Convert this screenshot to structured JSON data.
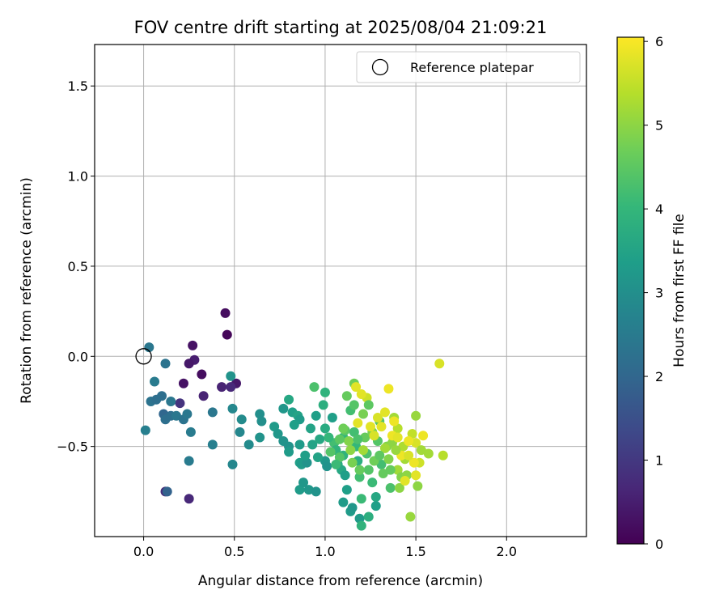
{
  "chart_data": {
    "type": "scatter",
    "title": "FOV centre drift starting at 2025/08/04 21:09:21",
    "xlabel": "Angular distance from reference (arcmin)",
    "ylabel": "Rotation from reference (arcmin)",
    "xlim": [
      -0.27,
      2.44
    ],
    "ylim": [
      -1.0,
      1.73
    ],
    "xticks": [
      0.0,
      0.5,
      1.0,
      1.5,
      2.0
    ],
    "xtick_labels": [
      "0.0",
      "0.5",
      "1.0",
      "1.5",
      "2.0"
    ],
    "yticks": [
      -0.5,
      0.0,
      0.5,
      1.0,
      1.5
    ],
    "ytick_labels": [
      "−0.5",
      "0.0",
      "0.5",
      "1.0",
      "1.5"
    ],
    "grid": true,
    "legend": {
      "position": "upper-right",
      "entries": [
        {
          "label": "Reference platepar",
          "marker": "open-circle",
          "x": 0.0,
          "y": 0.0
        }
      ]
    },
    "colorbar": {
      "label": "Hours from first FF file",
      "colormap": "viridis",
      "range": [
        0,
        6.05
      ],
      "ticks": [
        0,
        1,
        2,
        3,
        4,
        5,
        6
      ],
      "tick_labels": [
        "0",
        "1",
        "2",
        "3",
        "4",
        "5",
        "6"
      ]
    },
    "series": [
      {
        "marker": "filled-circle",
        "columns": [
          "x",
          "y",
          "hours"
        ],
        "points": [
          [
            0.45,
            0.24,
            0.2
          ],
          [
            0.46,
            0.12,
            0.1
          ],
          [
            0.27,
            0.06,
            0.3
          ],
          [
            0.28,
            -0.02,
            0.5
          ],
          [
            0.25,
            -0.04,
            0.4
          ],
          [
            0.32,
            -0.1,
            0.2
          ],
          [
            0.22,
            -0.15,
            0.3
          ],
          [
            0.43,
            -0.17,
            0.6
          ],
          [
            0.51,
            -0.15,
            0.4
          ],
          [
            0.48,
            -0.17,
            0.7
          ],
          [
            0.33,
            -0.22,
            0.6
          ],
          [
            0.2,
            -0.26,
            0.9
          ],
          [
            0.12,
            -0.75,
            0.8
          ],
          [
            0.25,
            -0.79,
            0.7
          ],
          [
            0.03,
            0.05,
            2.4
          ],
          [
            0.12,
            -0.04,
            2.3
          ],
          [
            0.06,
            -0.14,
            2.5
          ],
          [
            0.48,
            -0.11,
            3.1
          ],
          [
            0.1,
            -0.22,
            2.2
          ],
          [
            0.04,
            -0.25,
            2.3
          ],
          [
            0.07,
            -0.24,
            2.2
          ],
          [
            0.15,
            -0.25,
            2.4
          ],
          [
            0.11,
            -0.32,
            2.0
          ],
          [
            0.12,
            -0.35,
            2.2
          ],
          [
            0.15,
            -0.33,
            2.2
          ],
          [
            0.18,
            -0.33,
            2.4
          ],
          [
            0.22,
            -0.35,
            2.3
          ],
          [
            0.24,
            -0.32,
            2.4
          ],
          [
            0.26,
            -0.42,
            2.5
          ],
          [
            0.01,
            -0.41,
            2.6
          ],
          [
            0.25,
            -0.58,
            2.5
          ],
          [
            0.13,
            -0.75,
            1.9
          ],
          [
            0.38,
            -0.31,
            2.4
          ],
          [
            0.38,
            -0.49,
            2.6
          ],
          [
            0.49,
            -0.29,
            2.8
          ],
          [
            0.54,
            -0.35,
            2.9
          ],
          [
            0.53,
            -0.42,
            2.8
          ],
          [
            0.49,
            -0.6,
            2.8
          ],
          [
            0.58,
            -0.49,
            2.9
          ],
          [
            0.64,
            -0.32,
            3.0
          ],
          [
            0.65,
            -0.36,
            3.0
          ],
          [
            0.64,
            -0.45,
            3.1
          ],
          [
            0.72,
            -0.39,
            3.3
          ],
          [
            0.74,
            -0.43,
            3.2
          ],
          [
            0.77,
            -0.29,
            3.2
          ],
          [
            0.77,
            -0.47,
            3.1
          ],
          [
            0.8,
            -0.24,
            3.6
          ],
          [
            0.8,
            -0.5,
            3.1
          ],
          [
            0.8,
            -0.53,
            3.3
          ],
          [
            0.82,
            -0.31,
            3.4
          ],
          [
            0.85,
            -0.33,
            3.5
          ],
          [
            0.86,
            -0.35,
            3.3
          ],
          [
            0.86,
            -0.49,
            3.3
          ],
          [
            0.86,
            -0.59,
            3.4
          ],
          [
            0.87,
            -0.6,
            3.3
          ],
          [
            0.86,
            -0.74,
            3.3
          ],
          [
            0.88,
            -0.7,
            3.2
          ],
          [
            0.9,
            -0.59,
            3.1
          ],
          [
            0.91,
            -0.74,
            3.2
          ],
          [
            0.92,
            -0.4,
            3.5
          ],
          [
            0.93,
            -0.49,
            3.5
          ],
          [
            0.95,
            -0.33,
            3.4
          ],
          [
            0.97,
            -0.46,
            3.6
          ],
          [
            0.99,
            -0.27,
            3.8
          ],
          [
            1.0,
            -0.2,
            3.9
          ],
          [
            1.0,
            -0.4,
            3.7
          ],
          [
            1.0,
            -0.58,
            3.2
          ],
          [
            1.01,
            -0.61,
            3.1
          ],
          [
            0.95,
            -0.75,
            3.1
          ],
          [
            0.94,
            -0.17,
            4.3
          ],
          [
            1.04,
            -0.34,
            3.4
          ],
          [
            1.05,
            -0.48,
            4.2
          ],
          [
            1.06,
            -0.52,
            3.9
          ],
          [
            1.07,
            -0.6,
            3.7
          ],
          [
            1.09,
            -0.63,
            3.6
          ],
          [
            1.1,
            -0.45,
            4.0
          ],
          [
            1.1,
            -0.55,
            3.9
          ],
          [
            1.11,
            -0.66,
            3.4
          ],
          [
            1.12,
            -0.74,
            3.4
          ],
          [
            1.1,
            -0.81,
            3.3
          ],
          [
            1.14,
            -0.86,
            3.3
          ],
          [
            1.15,
            -0.84,
            3.2
          ],
          [
            1.19,
            -0.9,
            3.3
          ],
          [
            1.2,
            -0.94,
            3.9
          ],
          [
            1.12,
            -0.22,
            4.6
          ],
          [
            1.14,
            -0.3,
            4.2
          ],
          [
            1.16,
            -0.15,
            4.7
          ],
          [
            1.16,
            -0.42,
            4.2
          ],
          [
            1.17,
            -0.5,
            4.0
          ],
          [
            1.18,
            -0.58,
            3.8
          ],
          [
            1.19,
            -0.67,
            4.2
          ],
          [
            1.2,
            -0.79,
            4.1
          ],
          [
            1.21,
            -0.32,
            4.8
          ],
          [
            1.22,
            -0.45,
            4.6
          ],
          [
            1.23,
            -0.54,
            4.3
          ],
          [
            1.24,
            -0.63,
            4.4
          ],
          [
            1.24,
            -0.89,
            3.8
          ],
          [
            1.26,
            -0.7,
            4.1
          ],
          [
            1.26,
            -0.42,
            4.8
          ],
          [
            1.28,
            -0.78,
            3.6
          ],
          [
            1.28,
            -0.83,
            3.4
          ],
          [
            1.29,
            -0.47,
            4.4
          ],
          [
            1.3,
            -0.36,
            4.4
          ],
          [
            1.31,
            -0.6,
            4.2
          ],
          [
            1.32,
            -0.65,
            4.6
          ],
          [
            1.34,
            -0.5,
            4.9
          ],
          [
            1.35,
            -0.57,
            4.9
          ],
          [
            1.36,
            -0.73,
            4.3
          ],
          [
            1.37,
            -0.48,
            5.0
          ],
          [
            1.38,
            -0.34,
            5.2
          ],
          [
            1.4,
            -0.4,
            5.4
          ],
          [
            1.4,
            -0.63,
            5.2
          ],
          [
            1.41,
            -0.73,
            5.0
          ],
          [
            1.42,
            -0.67,
            4.9
          ],
          [
            1.43,
            -0.5,
            5.3
          ],
          [
            1.44,
            -0.57,
            5.2
          ],
          [
            1.45,
            -0.66,
            5.0
          ],
          [
            1.47,
            -0.89,
            5.1
          ],
          [
            1.48,
            -0.43,
            5.5
          ],
          [
            1.5,
            -0.33,
            5.1
          ],
          [
            1.5,
            -0.48,
            5.7
          ],
          [
            1.51,
            -0.72,
            5.0
          ],
          [
            1.52,
            -0.59,
            5.6
          ],
          [
            1.53,
            -0.52,
            5.2
          ],
          [
            1.23,
            -0.23,
            5.6
          ],
          [
            1.25,
            -0.39,
            5.8
          ],
          [
            1.27,
            -0.44,
            5.7
          ],
          [
            1.29,
            -0.34,
            5.7
          ],
          [
            1.31,
            -0.39,
            5.8
          ],
          [
            1.33,
            -0.31,
            5.8
          ],
          [
            1.35,
            -0.18,
            5.9
          ],
          [
            1.37,
            -0.44,
            5.9
          ],
          [
            1.38,
            -0.36,
            5.9
          ],
          [
            1.4,
            -0.45,
            5.8
          ],
          [
            1.42,
            -0.55,
            5.9
          ],
          [
            1.44,
            -0.69,
            5.8
          ],
          [
            1.46,
            -0.47,
            5.9
          ],
          [
            1.49,
            -0.59,
            5.9
          ],
          [
            1.5,
            -0.66,
            5.8
          ],
          [
            1.54,
            -0.44,
            5.9
          ],
          [
            1.57,
            -0.54,
            5.2
          ],
          [
            1.63,
            -0.04,
            5.7
          ],
          [
            1.65,
            -0.55,
            5.4
          ],
          [
            1.17,
            -0.17,
            5.8
          ],
          [
            1.2,
            -0.21,
            5.8
          ],
          [
            1.18,
            -0.37,
            5.8
          ],
          [
            1.14,
            -0.52,
            5.0
          ],
          [
            1.13,
            -0.47,
            4.9
          ],
          [
            1.15,
            -0.59,
            4.8
          ],
          [
            1.08,
            -0.56,
            4.4
          ],
          [
            1.03,
            -0.53,
            4.4
          ],
          [
            1.06,
            -0.6,
            4.1
          ],
          [
            1.02,
            -0.45,
            4.0
          ],
          [
            1.21,
            -0.52,
            5.2
          ],
          [
            1.19,
            -0.63,
            4.6
          ],
          [
            1.27,
            -0.58,
            4.7
          ],
          [
            1.33,
            -0.51,
            5.2
          ],
          [
            1.36,
            -0.63,
            4.6
          ],
          [
            1.46,
            -0.55,
            5.7
          ],
          [
            1.08,
            -0.46,
            4.5
          ],
          [
            1.11,
            -0.41,
            4.5
          ],
          [
            0.83,
            -0.38,
            3.4
          ],
          [
            0.89,
            -0.55,
            3.4
          ],
          [
            0.96,
            -0.56,
            3.5
          ],
          [
            1.24,
            -0.27,
            4.5
          ],
          [
            1.16,
            -0.27,
            4.4
          ],
          [
            1.1,
            -0.4,
            4.7
          ],
          [
            1.3,
            -0.55,
            4.5
          ],
          [
            1.18,
            -0.46,
            4.3
          ],
          [
            1.39,
            -0.52,
            5.1
          ]
        ]
      }
    ]
  }
}
